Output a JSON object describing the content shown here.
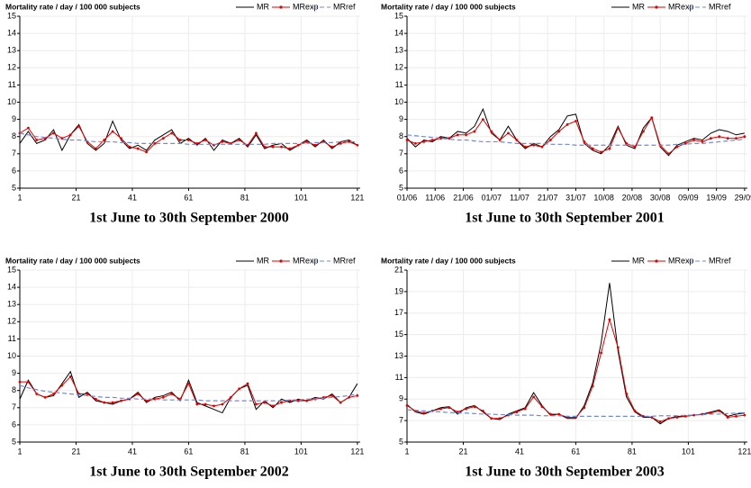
{
  "chart_data": [
    {
      "type": "line",
      "title": "1st June to 30th September 2000",
      "y_label": "Mortality rate / day / 100 000 subjects",
      "x": [
        1,
        4,
        7,
        10,
        13,
        16,
        19,
        22,
        25,
        28,
        31,
        34,
        37,
        40,
        43,
        46,
        49,
        52,
        55,
        58,
        61,
        64,
        67,
        70,
        73,
        76,
        79,
        82,
        85,
        88,
        91,
        94,
        97,
        100,
        103,
        106,
        109,
        112,
        115,
        118,
        121
      ],
      "xlim": [
        1,
        122
      ],
      "xticks": [
        1,
        21,
        41,
        61,
        81,
        101,
        121
      ],
      "ylim": [
        5,
        15
      ],
      "yticks": [
        5,
        6,
        7,
        8,
        9,
        10,
        11,
        12,
        13,
        14,
        15
      ],
      "grid": true,
      "series": [
        {
          "name": "MR",
          "color": "#000000",
          "style": "solid",
          "markers": false,
          "values": [
            7.6,
            8.3,
            7.6,
            7.8,
            8.4,
            7.2,
            8.1,
            8.7,
            7.6,
            7.2,
            7.6,
            8.9,
            7.8,
            7.3,
            7.5,
            7.2,
            7.8,
            8.1,
            8.4,
            7.6,
            7.9,
            7.5,
            7.9,
            7.2,
            7.8,
            7.6,
            7.9,
            7.4,
            8.1,
            7.3,
            7.5,
            7.6,
            7.2,
            7.5,
            7.8,
            7.4,
            7.8,
            7.3,
            7.7,
            7.8,
            7.5
          ]
        },
        {
          "name": "MRexp",
          "color": "#e00000",
          "style": "solid",
          "markers": true,
          "values": [
            8.2,
            8.5,
            7.8,
            7.9,
            8.2,
            7.9,
            8.1,
            8.6,
            7.7,
            7.3,
            7.8,
            8.3,
            7.9,
            7.4,
            7.3,
            7.1,
            7.6,
            7.9,
            8.2,
            7.8,
            7.8,
            7.6,
            7.8,
            7.5,
            7.7,
            7.6,
            7.8,
            7.5,
            8.2,
            7.4,
            7.4,
            7.4,
            7.3,
            7.5,
            7.7,
            7.5,
            7.7,
            7.4,
            7.6,
            7.7,
            7.5
          ]
        },
        {
          "name": "MRref",
          "color": "#6f8ad8",
          "style": "dashed",
          "markers": false,
          "values": [
            8.2,
            8.1,
            8.0,
            7.95,
            7.9,
            7.85,
            7.8,
            7.8,
            7.75,
            7.7,
            7.7,
            7.7,
            7.65,
            7.65,
            7.6,
            7.6,
            7.6,
            7.6,
            7.6,
            7.6,
            7.55,
            7.55,
            7.55,
            7.55,
            7.55,
            7.55,
            7.55,
            7.55,
            7.55,
            7.55,
            7.6,
            7.6,
            7.6,
            7.6,
            7.6,
            7.65,
            7.65,
            7.65,
            7.7,
            7.7,
            7.7
          ]
        }
      ]
    },
    {
      "type": "line",
      "title": "1st June to 30th September 2001",
      "y_label": "Mortality rate / day / 100 000 subjects",
      "x": [
        1,
        4,
        7,
        10,
        13,
        16,
        19,
        22,
        25,
        28,
        31,
        34,
        37,
        40,
        43,
        46,
        49,
        52,
        55,
        58,
        61,
        64,
        67,
        70,
        73,
        76,
        79,
        82,
        85,
        88,
        91,
        94,
        97,
        100,
        103,
        106,
        109,
        112,
        115,
        118,
        121
      ],
      "xlim": [
        1,
        122
      ],
      "xticks": [
        {
          "value": 1,
          "label": "01/06"
        },
        {
          "value": 11,
          "label": "11/06"
        },
        {
          "value": 21,
          "label": "21/06"
        },
        {
          "value": 31,
          "label": "01/07"
        },
        {
          "value": 41,
          "label": "11/07"
        },
        {
          "value": 51,
          "label": "21/07"
        },
        {
          "value": 61,
          "label": "31/07"
        },
        {
          "value": 71,
          "label": "10/08"
        },
        {
          "value": 81,
          "label": "20/08"
        },
        {
          "value": 91,
          "label": "30/08"
        },
        {
          "value": 101,
          "label": "09/09"
        },
        {
          "value": 111,
          "label": "19/09"
        },
        {
          "value": 121,
          "label": "29/09"
        }
      ],
      "ylim": [
        5,
        15
      ],
      "yticks": [
        5,
        6,
        7,
        8,
        9,
        10,
        11,
        12,
        13,
        14,
        15
      ],
      "grid": true,
      "series": [
        {
          "name": "MR",
          "color": "#000000",
          "style": "solid",
          "markers": false,
          "values": [
            7.9,
            7.4,
            7.8,
            7.7,
            8.0,
            7.9,
            8.3,
            8.2,
            8.6,
            9.6,
            8.2,
            7.8,
            8.6,
            7.8,
            7.3,
            7.6,
            7.4,
            8.0,
            8.4,
            9.2,
            9.3,
            7.6,
            7.2,
            7.0,
            7.5,
            8.6,
            7.5,
            7.3,
            8.5,
            9.1,
            7.4,
            6.9,
            7.5,
            7.7,
            7.9,
            7.8,
            8.2,
            8.4,
            8.3,
            8.1,
            8.2
          ]
        },
        {
          "name": "MRexp",
          "color": "#e00000",
          "style": "solid",
          "markers": true,
          "values": [
            7.8,
            7.6,
            7.7,
            7.8,
            7.9,
            7.9,
            8.1,
            8.1,
            8.3,
            9.0,
            8.3,
            7.8,
            8.2,
            7.8,
            7.4,
            7.5,
            7.4,
            7.8,
            8.3,
            8.7,
            8.9,
            7.7,
            7.3,
            7.1,
            7.3,
            8.5,
            7.6,
            7.4,
            8.3,
            9.1,
            7.5,
            7.0,
            7.4,
            7.6,
            7.8,
            7.7,
            7.9,
            8.0,
            7.9,
            7.9,
            8.0
          ]
        },
        {
          "name": "MRref",
          "color": "#6f8ad8",
          "style": "dashed",
          "markers": false,
          "values": [
            8.1,
            8.05,
            8.0,
            7.95,
            7.9,
            7.85,
            7.8,
            7.8,
            7.75,
            7.7,
            7.7,
            7.7,
            7.65,
            7.6,
            7.6,
            7.6,
            7.6,
            7.55,
            7.55,
            7.55,
            7.5,
            7.5,
            7.5,
            7.5,
            7.5,
            7.5,
            7.5,
            7.5,
            7.5,
            7.5,
            7.5,
            7.5,
            7.55,
            7.55,
            7.6,
            7.6,
            7.65,
            7.7,
            7.75,
            7.8,
            7.85
          ]
        }
      ]
    },
    {
      "type": "line",
      "title": "1st June to 30th September 2002",
      "y_label": "Mortality rate / day / 100 000 subjects",
      "x": [
        1,
        4,
        7,
        10,
        13,
        16,
        19,
        22,
        25,
        28,
        31,
        34,
        37,
        40,
        43,
        46,
        49,
        52,
        55,
        58,
        61,
        64,
        67,
        70,
        73,
        76,
        79,
        82,
        85,
        88,
        91,
        94,
        97,
        100,
        103,
        106,
        109,
        112,
        115,
        118,
        121
      ],
      "xlim": [
        1,
        122
      ],
      "xticks": [
        1,
        21,
        41,
        61,
        81,
        101,
        121
      ],
      "ylim": [
        5,
        15
      ],
      "yticks": [
        5,
        6,
        7,
        8,
        9,
        10,
        11,
        12,
        13,
        14,
        15
      ],
      "grid": true,
      "series": [
        {
          "name": "MR",
          "color": "#000000",
          "style": "solid",
          "markers": false,
          "values": [
            7.5,
            8.6,
            7.8,
            7.6,
            7.7,
            8.4,
            9.1,
            7.6,
            7.9,
            7.4,
            7.3,
            7.2,
            7.4,
            7.5,
            7.9,
            7.3,
            7.6,
            7.7,
            7.9,
            7.4,
            8.6,
            7.3,
            7.1,
            6.9,
            6.7,
            7.6,
            8.1,
            8.3,
            6.9,
            7.4,
            7.0,
            7.5,
            7.3,
            7.5,
            7.4,
            7.6,
            7.5,
            7.8,
            7.3,
            7.6,
            8.4
          ]
        },
        {
          "name": "MRexp",
          "color": "#e00000",
          "style": "solid",
          "markers": true,
          "values": [
            8.5,
            8.5,
            7.8,
            7.6,
            7.8,
            8.3,
            8.8,
            7.8,
            7.8,
            7.5,
            7.3,
            7.3,
            7.4,
            7.5,
            7.8,
            7.4,
            7.5,
            7.6,
            7.8,
            7.5,
            8.4,
            7.2,
            7.2,
            7.1,
            7.2,
            7.6,
            8.1,
            8.4,
            7.2,
            7.3,
            7.1,
            7.3,
            7.4,
            7.4,
            7.4,
            7.5,
            7.6,
            7.7,
            7.3,
            7.6,
            7.7
          ]
        },
        {
          "name": "MRref",
          "color": "#6f8ad8",
          "style": "dashed",
          "markers": false,
          "values": [
            8.3,
            8.15,
            8.05,
            7.95,
            7.9,
            7.85,
            7.8,
            7.75,
            7.7,
            7.65,
            7.6,
            7.6,
            7.55,
            7.55,
            7.5,
            7.5,
            7.5,
            7.45,
            7.45,
            7.45,
            7.45,
            7.45,
            7.4,
            7.4,
            7.4,
            7.4,
            7.4,
            7.4,
            7.4,
            7.4,
            7.4,
            7.4,
            7.45,
            7.45,
            7.5,
            7.5,
            7.55,
            7.6,
            7.65,
            7.7,
            7.8
          ]
        }
      ]
    },
    {
      "type": "line",
      "title": "1st June to 30th September 2003",
      "y_label": "Mortality rate / day / 100 000 subjects",
      "x": [
        1,
        4,
        7,
        10,
        13,
        16,
        19,
        22,
        25,
        28,
        31,
        34,
        37,
        40,
        43,
        46,
        49,
        52,
        55,
        58,
        61,
        64,
        67,
        70,
        73,
        76,
        79,
        82,
        85,
        88,
        91,
        94,
        97,
        100,
        103,
        106,
        109,
        112,
        115,
        118,
        121
      ],
      "xlim": [
        1,
        122
      ],
      "xticks": [
        1,
        21,
        41,
        61,
        81,
        101,
        121
      ],
      "ylim": [
        5,
        21
      ],
      "yticks": [
        5,
        7,
        9,
        11,
        13,
        15,
        17,
        19,
        21
      ],
      "grid": true,
      "series": [
        {
          "name": "MR",
          "color": "#000000",
          "style": "solid",
          "markers": false,
          "values": [
            8.5,
            7.8,
            7.6,
            7.9,
            8.2,
            8.3,
            7.6,
            8.2,
            8.4,
            7.8,
            7.2,
            7.1,
            7.6,
            7.9,
            8.2,
            9.6,
            8.4,
            7.5,
            7.6,
            7.2,
            7.2,
            8.4,
            10.5,
            14.2,
            19.8,
            13.5,
            9.2,
            7.8,
            7.3,
            7.3,
            6.7,
            7.2,
            7.4,
            7.4,
            7.5,
            7.6,
            7.8,
            8.0,
            7.4,
            7.6,
            7.7
          ]
        },
        {
          "name": "MRexp",
          "color": "#e00000",
          "style": "solid",
          "markers": true,
          "values": [
            8.4,
            7.9,
            7.7,
            7.9,
            8.1,
            8.2,
            7.8,
            8.1,
            8.3,
            7.9,
            7.2,
            7.2,
            7.5,
            7.8,
            8.1,
            9.2,
            8.3,
            7.6,
            7.6,
            7.3,
            7.3,
            8.2,
            10.2,
            13.3,
            16.4,
            13.8,
            9.5,
            7.9,
            7.4,
            7.3,
            6.9,
            7.2,
            7.3,
            7.4,
            7.5,
            7.6,
            7.7,
            7.9,
            7.3,
            7.4,
            7.5
          ]
        },
        {
          "name": "MRref",
          "color": "#6f8ad8",
          "style": "dashed",
          "markers": false,
          "values": [
            8.0,
            7.95,
            7.9,
            7.85,
            7.8,
            7.75,
            7.7,
            7.7,
            7.65,
            7.6,
            7.6,
            7.55,
            7.55,
            7.5,
            7.5,
            7.5,
            7.45,
            7.45,
            7.45,
            7.4,
            7.4,
            7.4,
            7.4,
            7.4,
            7.4,
            7.4,
            7.4,
            7.4,
            7.4,
            7.4,
            7.45,
            7.45,
            7.45,
            7.5,
            7.5,
            7.55,
            7.6,
            7.6,
            7.65,
            7.7,
            7.75
          ]
        }
      ]
    }
  ]
}
